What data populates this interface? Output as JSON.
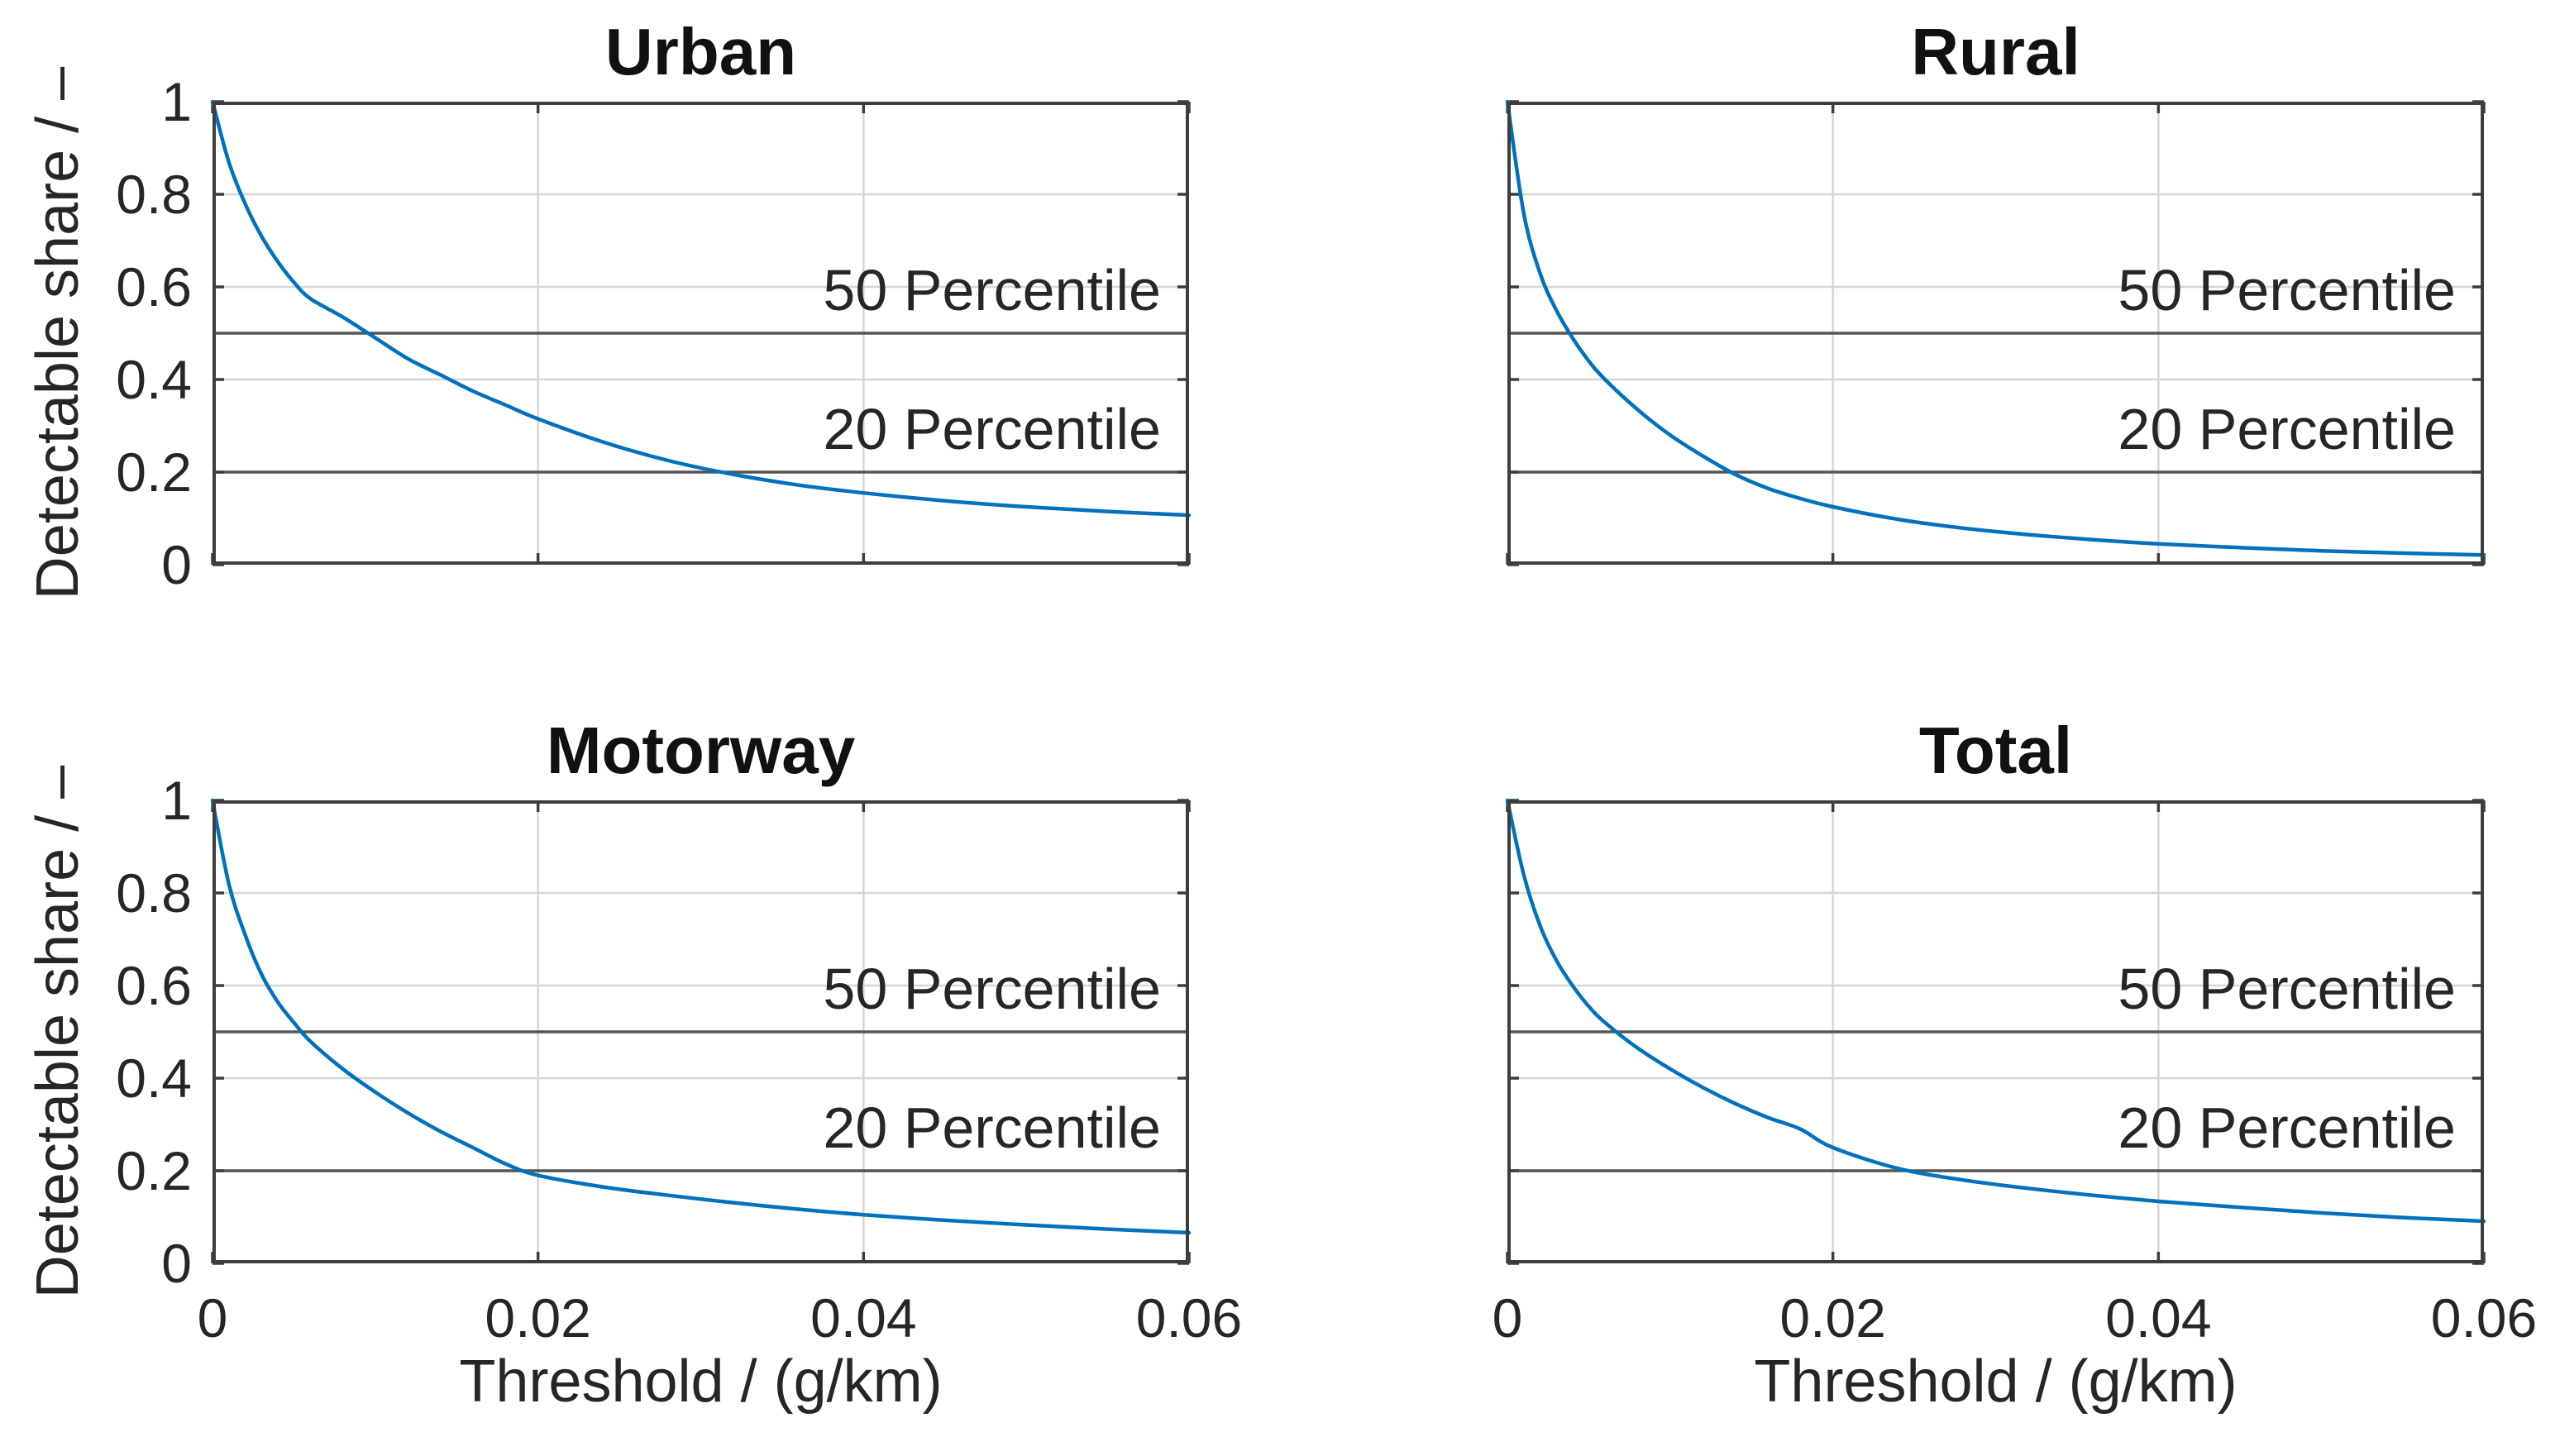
{
  "figure": {
    "background": "#ffffff",
    "colors": {
      "line": "#0072BD",
      "frame": "#3d3d3d",
      "grid": "#d6d6d6",
      "percentile_line": "#555555",
      "tick": "#3d3d3d",
      "text": "#262626"
    },
    "axes": {
      "xlim": [
        0,
        0.06
      ],
      "ylim": [
        0,
        1
      ],
      "xticks": [
        0,
        0.02,
        0.04,
        0.06
      ],
      "xtick_labels": [
        "0",
        "0.02",
        "0.04",
        "0.06"
      ],
      "yticks": [
        0,
        0.2,
        0.4,
        0.6,
        0.8,
        1
      ],
      "ytick_labels": [
        "0",
        "0.2",
        "0.4",
        "0.6",
        "0.8",
        "1"
      ],
      "grid_x": [
        0.02,
        0.04
      ],
      "grid_y": [
        0.2,
        0.4,
        0.6,
        0.8
      ],
      "grid": "on",
      "box": "on"
    }
  },
  "chart_data": [
    {
      "type": "line",
      "title": "Urban",
      "ylabel": "Detectable share / –",
      "xlabel": null,
      "xlim": [
        0,
        0.06
      ],
      "ylim": [
        0,
        1
      ],
      "x": [
        0,
        0.001,
        0.002,
        0.003,
        0.004,
        0.005,
        0.006,
        0.008,
        0.01,
        0.012,
        0.014,
        0.016,
        0.018,
        0.02,
        0.024,
        0.028,
        0.032,
        0.036,
        0.04,
        0.045,
        0.05,
        0.055,
        0.06
      ],
      "y": [
        1.0,
        0.87,
        0.78,
        0.71,
        0.655,
        0.61,
        0.575,
        0.535,
        0.49,
        0.445,
        0.41,
        0.375,
        0.345,
        0.315,
        0.265,
        0.225,
        0.195,
        0.172,
        0.155,
        0.138,
        0.125,
        0.115,
        0.107
      ],
      "hlines": [
        {
          "y": 0.5,
          "label": "50 Percentile"
        },
        {
          "y": 0.2,
          "label": "20 Percentile"
        }
      ],
      "crossings": {
        "p50_at_x": 0.0094,
        "p20_at_x": 0.0305
      }
    },
    {
      "type": "line",
      "title": "Rural",
      "ylabel": null,
      "xlabel": null,
      "xlim": [
        0,
        0.06
      ],
      "ylim": [
        0,
        1
      ],
      "x": [
        0,
        0.001,
        0.002,
        0.003,
        0.004,
        0.005,
        0.006,
        0.008,
        0.01,
        0.012,
        0.014,
        0.016,
        0.018,
        0.02,
        0.024,
        0.028,
        0.032,
        0.036,
        0.04,
        0.045,
        0.05,
        0.055,
        0.06
      ],
      "y": [
        1.0,
        0.76,
        0.63,
        0.55,
        0.49,
        0.44,
        0.4,
        0.335,
        0.28,
        0.235,
        0.195,
        0.165,
        0.143,
        0.125,
        0.098,
        0.079,
        0.065,
        0.054,
        0.045,
        0.037,
        0.03,
        0.025,
        0.021
      ],
      "hlines": [
        {
          "y": 0.5,
          "label": "50 Percentile"
        },
        {
          "y": 0.2,
          "label": "20 Percentile"
        }
      ],
      "crossings": {
        "p50_at_x": 0.0039,
        "p20_at_x": 0.0137
      }
    },
    {
      "type": "line",
      "title": "Motorway",
      "ylabel": "Detectable share / –",
      "xlabel": "Threshold / (g/km)",
      "xlim": [
        0,
        0.06
      ],
      "ylim": [
        0,
        1
      ],
      "x": [
        0,
        0.001,
        0.002,
        0.003,
        0.004,
        0.005,
        0.006,
        0.008,
        0.01,
        0.012,
        0.014,
        0.016,
        0.018,
        0.02,
        0.024,
        0.028,
        0.032,
        0.036,
        0.04,
        0.045,
        0.05,
        0.055,
        0.06
      ],
      "y": [
        1.0,
        0.82,
        0.71,
        0.625,
        0.565,
        0.52,
        0.48,
        0.42,
        0.37,
        0.325,
        0.285,
        0.25,
        0.215,
        0.19,
        0.165,
        0.147,
        0.131,
        0.117,
        0.105,
        0.093,
        0.083,
        0.074,
        0.066
      ],
      "hlines": [
        {
          "y": 0.5,
          "label": "50 Percentile"
        },
        {
          "y": 0.2,
          "label": "20 Percentile"
        }
      ],
      "crossings": {
        "p50_at_x": 0.0055,
        "p20_at_x": 0.019
      }
    },
    {
      "type": "line",
      "title": "Total",
      "ylabel": null,
      "xlabel": "Threshold / (g/km)",
      "xlim": [
        0,
        0.06
      ],
      "ylim": [
        0,
        1
      ],
      "x": [
        0,
        0.001,
        0.002,
        0.003,
        0.004,
        0.005,
        0.006,
        0.008,
        0.01,
        0.012,
        0.014,
        0.016,
        0.018,
        0.02,
        0.024,
        0.028,
        0.032,
        0.036,
        0.04,
        0.045,
        0.05,
        0.055,
        0.06
      ],
      "y": [
        1.0,
        0.84,
        0.73,
        0.655,
        0.6,
        0.555,
        0.52,
        0.465,
        0.42,
        0.38,
        0.345,
        0.315,
        0.29,
        0.25,
        0.205,
        0.18,
        0.162,
        0.147,
        0.134,
        0.121,
        0.109,
        0.099,
        0.091
      ],
      "hlines": [
        {
          "y": 0.5,
          "label": "50 Percentile"
        },
        {
          "y": 0.2,
          "label": "20 Percentile"
        }
      ],
      "crossings": {
        "p50_at_x": 0.007,
        "p20_at_x": 0.0247
      }
    }
  ]
}
